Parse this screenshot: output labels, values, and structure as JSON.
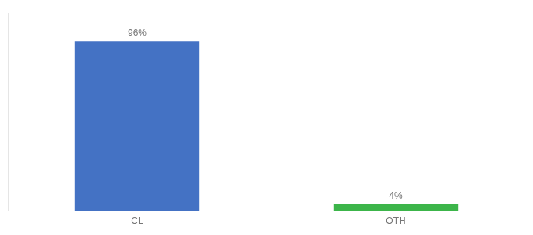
{
  "chart_data": {
    "type": "bar",
    "categories": [
      "CL",
      "OTH"
    ],
    "values": [
      96,
      4
    ],
    "value_labels": [
      "96%",
      "4%"
    ],
    "data_labels": true,
    "colors": [
      "#4472c4",
      "#3cb54a"
    ],
    "ylim": [
      0,
      112
    ],
    "tick_labels": "x",
    "grid": false
  }
}
